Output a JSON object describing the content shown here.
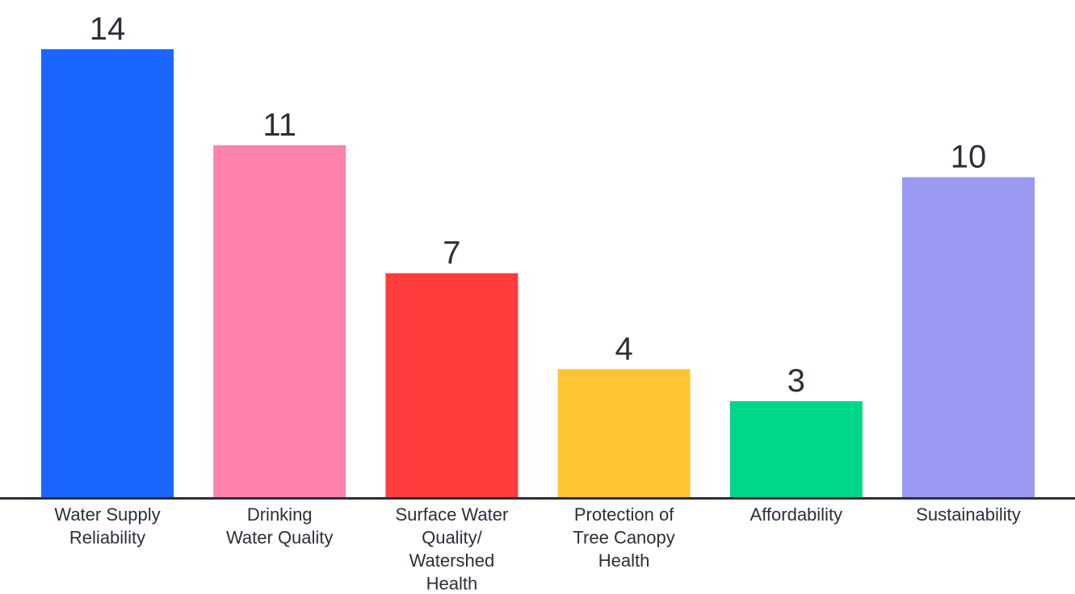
{
  "chart_data": {
    "type": "bar",
    "title": "",
    "xlabel": "",
    "ylabel": "",
    "categories": [
      [
        "Water Supply",
        "Reliability"
      ],
      [
        "Drinking",
        "Water Quality"
      ],
      [
        "Surface Water",
        "Quality/",
        "Watershed",
        "Health"
      ],
      [
        "Protection of",
        "Tree Canopy",
        "Health"
      ],
      [
        "Affordability"
      ],
      [
        "Sustainability"
      ]
    ],
    "values": [
      14,
      11,
      7,
      4,
      3,
      10
    ],
    "data_labels": [
      "14",
      "11",
      "7",
      "4",
      "3",
      "10"
    ],
    "colors": [
      "#1a66ff",
      "#ff82aa",
      "#ff3d3d",
      "#ffc433",
      "#00d68a",
      "#9999f2"
    ],
    "axis_color": "#2b2f3a",
    "ylim": [
      0,
      14
    ],
    "grid": false,
    "legend": "none"
  }
}
